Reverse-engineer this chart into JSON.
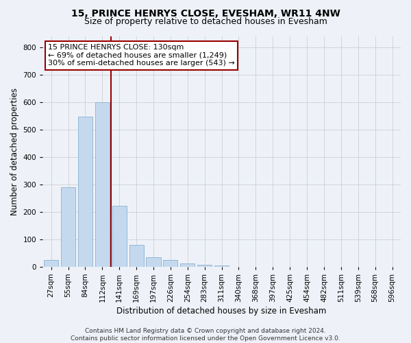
{
  "title": "15, PRINCE HENRYS CLOSE, EVESHAM, WR11 4NW",
  "subtitle": "Size of property relative to detached houses in Evesham",
  "xlabel": "Distribution of detached houses by size in Evesham",
  "ylabel": "Number of detached properties",
  "categories": [
    "27sqm",
    "55sqm",
    "84sqm",
    "112sqm",
    "141sqm",
    "169sqm",
    "197sqm",
    "226sqm",
    "254sqm",
    "283sqm",
    "311sqm",
    "340sqm",
    "368sqm",
    "397sqm",
    "425sqm",
    "454sqm",
    "482sqm",
    "511sqm",
    "539sqm",
    "568sqm",
    "596sqm"
  ],
  "values": [
    25,
    290,
    547,
    598,
    222,
    80,
    35,
    25,
    12,
    8,
    5,
    0,
    0,
    0,
    0,
    0,
    0,
    0,
    0,
    0,
    0
  ],
  "bar_color": "#c5d9ee",
  "bar_edge_color": "#8ab0d0",
  "vline_color": "#990000",
  "annotation_text": "15 PRINCE HENRYS CLOSE: 130sqm\n← 69% of detached houses are smaller (1,249)\n30% of semi-detached houses are larger (543) →",
  "annotation_box_facecolor": "#ffffff",
  "annotation_box_edgecolor": "#990000",
  "ylim": [
    0,
    840
  ],
  "yticks": [
    0,
    100,
    200,
    300,
    400,
    500,
    600,
    700,
    800
  ],
  "footer": "Contains HM Land Registry data © Crown copyright and database right 2024.\nContains public sector information licensed under the Open Government Licence v3.0.",
  "bg_color": "#eef2f8",
  "plot_bg_color": "#eef2f8",
  "grid_color": "#c8c8c8",
  "title_fontsize": 10,
  "subtitle_fontsize": 9,
  "axis_label_fontsize": 8.5,
  "footer_fontsize": 6.5,
  "tick_fontsize": 7.5,
  "annotation_fontsize": 8
}
